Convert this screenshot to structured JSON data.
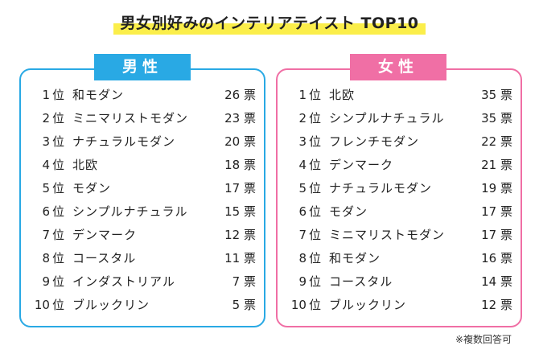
{
  "title": "男女別好みのインテリアテイスト TOP10",
  "rank_suffix": "位",
  "vote_suffix": "票",
  "note": "※複数回答可",
  "colors": {
    "male": "#29a9e4",
    "female": "#f06fa5",
    "highlight": "#fbee4a"
  },
  "male": {
    "label": "男性",
    "items": [
      {
        "rank": "1",
        "name": "和モダン",
        "votes": "26"
      },
      {
        "rank": "2",
        "name": "ミニマリストモダン",
        "votes": "23"
      },
      {
        "rank": "3",
        "name": "ナチュラルモダン",
        "votes": "20"
      },
      {
        "rank": "4",
        "name": "北欧",
        "votes": "18"
      },
      {
        "rank": "5",
        "name": "モダン",
        "votes": "17"
      },
      {
        "rank": "6",
        "name": "シンプルナチュラル",
        "votes": "15"
      },
      {
        "rank": "7",
        "name": "デンマーク",
        "votes": "12"
      },
      {
        "rank": "8",
        "name": "コースタル",
        "votes": "11"
      },
      {
        "rank": "9",
        "name": "インダストリアル",
        "votes": "7"
      },
      {
        "rank": "10",
        "name": "ブルックリン",
        "votes": "5"
      }
    ]
  },
  "female": {
    "label": "女性",
    "items": [
      {
        "rank": "1",
        "name": "北欧",
        "votes": "35"
      },
      {
        "rank": "2",
        "name": "シンプルナチュラル",
        "votes": "35"
      },
      {
        "rank": "3",
        "name": "フレンチモダン",
        "votes": "22"
      },
      {
        "rank": "4",
        "name": "デンマーク",
        "votes": "21"
      },
      {
        "rank": "5",
        "name": "ナチュラルモダン",
        "votes": "19"
      },
      {
        "rank": "6",
        "name": "モダン",
        "votes": "17"
      },
      {
        "rank": "7",
        "name": "ミニマリストモダン",
        "votes": "17"
      },
      {
        "rank": "8",
        "name": "和モダン",
        "votes": "16"
      },
      {
        "rank": "9",
        "name": "コースタル",
        "votes": "14"
      },
      {
        "rank": "10",
        "name": "ブルックリン",
        "votes": "12"
      }
    ]
  }
}
